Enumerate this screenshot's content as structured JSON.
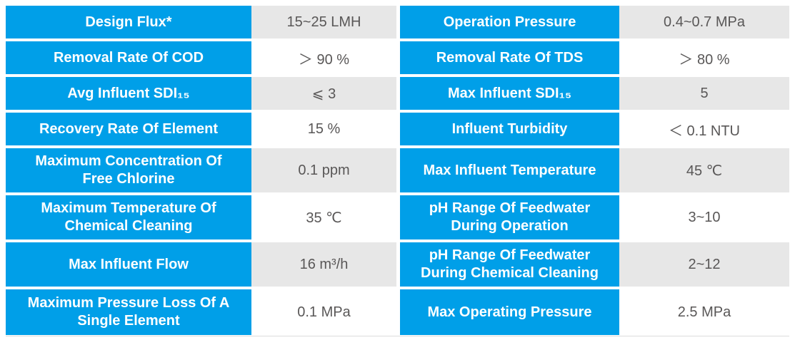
{
  "colors": {
    "accent_blue": "#009FE8",
    "alt_row_gray": "#E7E7E7",
    "value_text": "#595757"
  },
  "rows": [
    {
      "left": {
        "label": "Design Flux*",
        "value": "15~25 LMH"
      },
      "right": {
        "label": "Operation Pressure",
        "value": "0.4~0.7 MPa"
      }
    },
    {
      "left": {
        "label": "Removal Rate Of COD",
        "value": "＞ 90 %"
      },
      "right": {
        "label": "Removal Rate Of TDS",
        "value": "＞ 80 %"
      }
    },
    {
      "left": {
        "label": "Avg Influent SDI₁₅",
        "value": "⩽ 3"
      },
      "right": {
        "label": "Max Influent SDI₁₅",
        "value": "5"
      }
    },
    {
      "left": {
        "label": "Recovery Rate Of Element",
        "value": "15 %"
      },
      "right": {
        "label": "Influent Turbidity",
        "value": "＜ 0.1 NTU"
      }
    },
    {
      "left": {
        "label": "Maximum Concentration Of\nFree Chlorine",
        "value": "0.1 ppm"
      },
      "right": {
        "label": "Max Influent Temperature",
        "value": "45 ℃"
      }
    },
    {
      "left": {
        "label": "Maximum Temperature Of\nChemical Cleaning",
        "value": "35 ℃"
      },
      "right": {
        "label": "pH Range Of Feedwater\nDuring Operation",
        "value": "3~10"
      }
    },
    {
      "left": {
        "label": "Max Influent Flow",
        "value": "16 m³/h"
      },
      "right": {
        "label": "pH Range Of Feedwater\nDuring Chemical Cleaning",
        "value": "2~12"
      }
    },
    {
      "left": {
        "label": "Maximum Pressure Loss Of A\nSingle Element",
        "value": "0.1 MPa"
      },
      "right": {
        "label": "Max Operating Pressure",
        "value": "2.5 MPa"
      }
    }
  ]
}
